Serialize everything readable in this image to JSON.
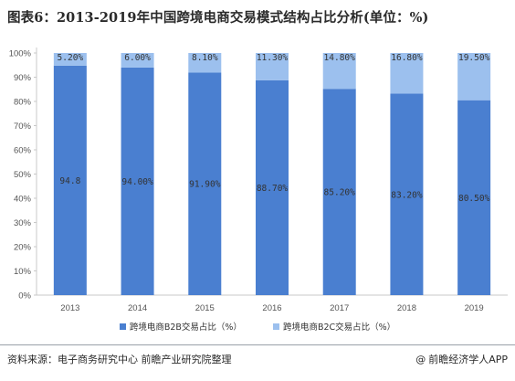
{
  "title": "图表6：2013-2019年中国跨境电商交易模式结构占比分析(单位：%)",
  "chart_data": {
    "type": "bar",
    "stacked": true,
    "categories": [
      "2013",
      "2014",
      "2015",
      "2016",
      "2017",
      "2018",
      "2019"
    ],
    "series": [
      {
        "name": "跨境电商B2B交易占比（%）",
        "values": [
          94.8,
          94.0,
          91.9,
          88.7,
          85.2,
          83.2,
          80.5
        ],
        "labels": [
          "94.8",
          "94.00%",
          "91.90%",
          "88.70%",
          "85.20%",
          "83.20%",
          "80.50%"
        ],
        "color": "#4a7fd0"
      },
      {
        "name": "跨境电商B2C交易占比（%）",
        "values": [
          5.2,
          6.0,
          8.1,
          11.3,
          14.8,
          16.8,
          19.5
        ],
        "labels": [
          "5.20%",
          "6.00%",
          "8.10%",
          "11.30%",
          "14.80%",
          "16.80%",
          "19.50%"
        ],
        "color": "#9cc0ee"
      }
    ],
    "yticks": [
      "0%",
      "10%",
      "20%",
      "30%",
      "40%",
      "50%",
      "60%",
      "70%",
      "80%",
      "90%",
      "100%"
    ],
    "ylim": [
      0,
      100
    ],
    "xlabel": "",
    "ylabel": "",
    "grid": false,
    "legend_position": "bottom"
  },
  "footer": {
    "source": "资料来源：电子商务研究中心 前瞻产业研究院整理",
    "brand_symbol": "@",
    "brand": "前瞻经济学人APP"
  }
}
